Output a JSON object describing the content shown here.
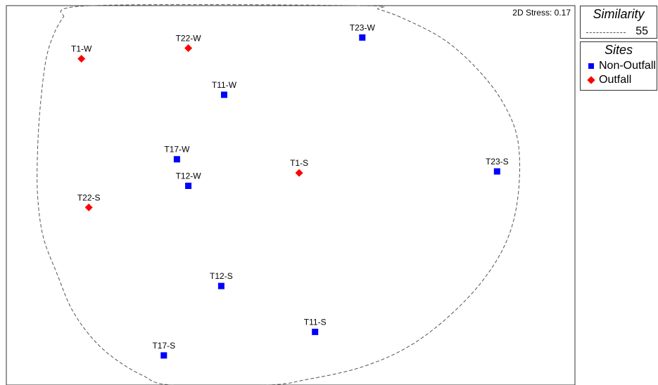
{
  "stress_label": "2D Stress: 0.17",
  "legend": {
    "similarity_title": "Similarity",
    "similarity_value": "55",
    "sites_title": "Sites",
    "sites": [
      {
        "label": "Non-Outfall",
        "marker": "square",
        "color": "#0000ff"
      },
      {
        "label": "Outfall",
        "marker": "diamond",
        "color": "#ff0000"
      }
    ]
  },
  "chart_data": {
    "type": "scatter",
    "title": "",
    "xlabel": "",
    "ylabel": "",
    "axes_visible": false,
    "grid": false,
    "legend_position": "right",
    "xlim": [
      0,
      100
    ],
    "ylim": [
      0,
      100
    ],
    "series": [
      {
        "name": "Non-Outfall",
        "marker": "square",
        "color": "#0000ff",
        "points": [
          {
            "label": "T23-W",
            "x": 62.6,
            "y": 91.6
          },
          {
            "label": "T11-W",
            "x": 38.3,
            "y": 76.5
          },
          {
            "label": "T17-W",
            "x": 30.0,
            "y": 59.5
          },
          {
            "label": "T12-W",
            "x": 32.0,
            "y": 52.5
          },
          {
            "label": "T23-S",
            "x": 86.3,
            "y": 56.3
          },
          {
            "label": "T12-S",
            "x": 37.8,
            "y": 26.1
          },
          {
            "label": "T11-S",
            "x": 54.3,
            "y": 14.0
          },
          {
            "label": "T17-S",
            "x": 27.7,
            "y": 7.8
          }
        ]
      },
      {
        "name": "Outfall",
        "marker": "diamond",
        "color": "#ff0000",
        "points": [
          {
            "label": "T1-W",
            "x": 13.2,
            "y": 86.0
          },
          {
            "label": "T22-W",
            "x": 32.0,
            "y": 88.8
          },
          {
            "label": "T1-S",
            "x": 51.5,
            "y": 55.9
          },
          {
            "label": "T22-S",
            "x": 14.5,
            "y": 46.8
          }
        ]
      }
    ],
    "contour": {
      "name": "Similarity 55",
      "style": "dashed",
      "path": [
        [
          10,
          97
        ],
        [
          15,
          100
        ],
        [
          62,
          100
        ],
        [
          65.5,
          99
        ],
        [
          70,
          96.5
        ],
        [
          77,
          91
        ],
        [
          83,
          83
        ],
        [
          87.5,
          74
        ],
        [
          90,
          64
        ],
        [
          90,
          50
        ],
        [
          88,
          38
        ],
        [
          83.5,
          27
        ],
        [
          77,
          17
        ],
        [
          70,
          9.5
        ],
        [
          62,
          4.5
        ],
        [
          53,
          1.5
        ],
        [
          46,
          0
        ],
        [
          29,
          0
        ],
        [
          24,
          2.5
        ],
        [
          19,
          7
        ],
        [
          15,
          12.5
        ],
        [
          11.5,
          20
        ],
        [
          9,
          29
        ],
        [
          6.5,
          39
        ],
        [
          5.5,
          50
        ],
        [
          5.5,
          62
        ],
        [
          6,
          74
        ],
        [
          7,
          86
        ],
        [
          8.5,
          93
        ],
        [
          10,
          97
        ]
      ]
    }
  }
}
